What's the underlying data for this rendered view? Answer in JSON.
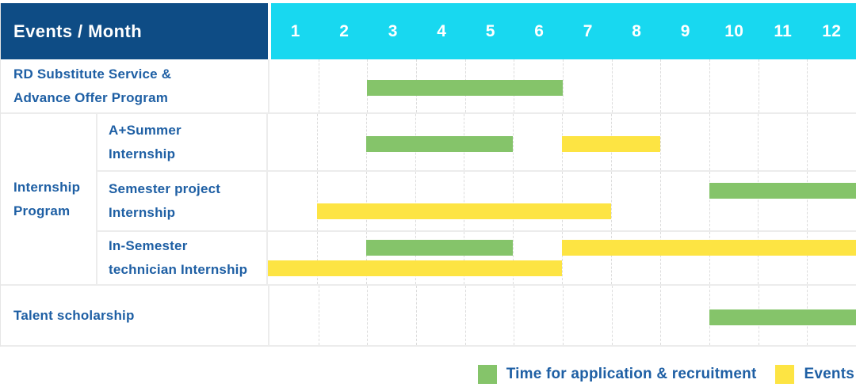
{
  "header": {
    "title": "Events / Month"
  },
  "colors": {
    "header_bg": "#0e4c85",
    "month_header_bg": "#18d8f0",
    "recruitment_green": "#85c46a",
    "event_yellow": "#fde443",
    "label_text_blue": "#1e5fa4",
    "header_text": "#ffffff"
  },
  "legend": {
    "items": [
      {
        "label": "Time for application & recruitment",
        "color_key": "recruitment_green"
      },
      {
        "label": "Events",
        "color_key": "event_yellow"
      }
    ]
  },
  "chart_data": {
    "type": "gantt",
    "title": "Events / Month",
    "months": [
      "1",
      "2",
      "3",
      "4",
      "5",
      "6",
      "7",
      "8",
      "9",
      "10",
      "11",
      "12"
    ],
    "x_range": [
      1,
      12
    ],
    "grid": "dashed-vertical",
    "legend_position": "bottom-right",
    "bar_types": {
      "recruitment": "Time for application & recruitment",
      "event": "Events"
    },
    "group_label": "Internship\nProgram",
    "rows": [
      {
        "label": "RD Substitute Service &\nAdvance Offer Program",
        "group": null,
        "bars": [
          {
            "type": "recruitment",
            "start_month": 3,
            "end_month": 6,
            "lane": "single"
          }
        ]
      },
      {
        "label": "A+Summer\nInternship",
        "group": "Internship Program",
        "bars": [
          {
            "type": "recruitment",
            "start_month": 3,
            "end_month": 5,
            "lane": "single"
          },
          {
            "type": "event",
            "start_month": 7,
            "end_month": 8,
            "lane": "single"
          }
        ]
      },
      {
        "label": "Semester project\nInternship",
        "group": "Internship Program",
        "bars": [
          {
            "type": "recruitment",
            "start_month": 10,
            "end_month": 12,
            "lane": "top"
          },
          {
            "type": "event",
            "start_month": 2,
            "end_month": 7,
            "lane": "bottom"
          }
        ]
      },
      {
        "label": "In-Semester\ntechnician Internship",
        "group": "Internship Program",
        "bars": [
          {
            "type": "recruitment",
            "start_month": 3,
            "end_month": 5,
            "lane": "top"
          },
          {
            "type": "event",
            "start_month": 7,
            "end_month": 12,
            "lane": "top"
          },
          {
            "type": "event",
            "start_month": 1,
            "end_month": 6,
            "lane": "bottom"
          }
        ]
      },
      {
        "label": "Talent scholarship",
        "group": null,
        "bars": [
          {
            "type": "recruitment",
            "start_month": 10,
            "end_month": 12,
            "lane": "single"
          }
        ]
      }
    ]
  }
}
